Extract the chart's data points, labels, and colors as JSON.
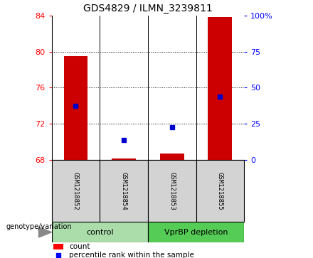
{
  "title": "GDS4829 / ILMN_3239811",
  "samples": [
    "GSM1218852",
    "GSM1218854",
    "GSM1218853",
    "GSM1218855"
  ],
  "count_values": [
    79.5,
    68.2,
    68.7,
    83.8
  ],
  "percentile_values": [
    74.0,
    70.2,
    71.6,
    75.0
  ],
  "ylim_left": [
    68,
    84
  ],
  "ylim_right": [
    0,
    100
  ],
  "yticks_left": [
    68,
    72,
    76,
    80,
    84
  ],
  "yticks_right": [
    0,
    25,
    50,
    75,
    100
  ],
  "ytick_labels_right": [
    "0",
    "25",
    "50",
    "75",
    "100%"
  ],
  "bar_color": "#CC0000",
  "dot_color": "#0000CC",
  "bar_width": 0.5,
  "legend_count_label": "count",
  "legend_percentile_label": "percentile rank within the sample",
  "group_label": "genotype/variation",
  "control_color": "#AADDAA",
  "vprBP_color": "#55CC55",
  "sample_bg": "#D3D3D3"
}
